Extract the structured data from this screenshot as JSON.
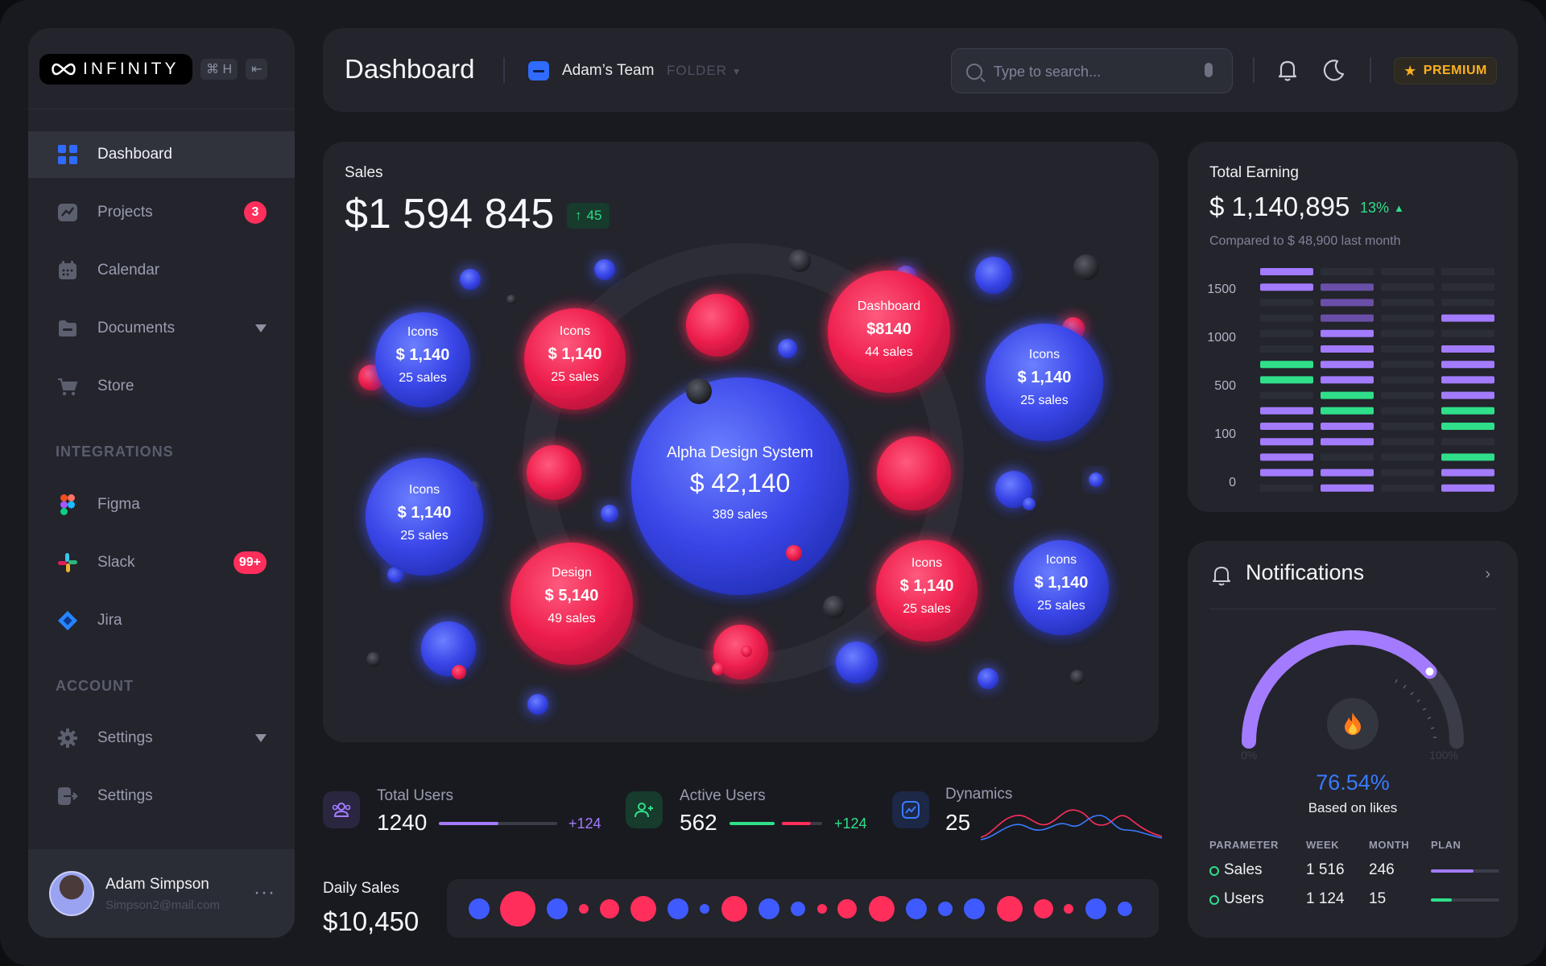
{
  "logo": {
    "text": "INFINITY"
  },
  "shortcut": {
    "key": "⌘ H",
    "collapse": "⇤"
  },
  "sidebar": {
    "items": [
      {
        "label": "Dashboard",
        "active": true
      },
      {
        "label": "Projects",
        "badge": "3"
      },
      {
        "label": "Calendar"
      },
      {
        "label": "Documents",
        "dropdown": true
      },
      {
        "label": "Store"
      }
    ],
    "integrations_label": "INTEGRATIONS",
    "integrations": [
      {
        "label": "Figma"
      },
      {
        "label": "Slack",
        "badge": "99+"
      },
      {
        "label": "Jira"
      }
    ],
    "account_label": "ACCOUNT",
    "account": [
      {
        "label": "Settings",
        "dropdown": true
      },
      {
        "label": "Settings"
      }
    ],
    "profile": {
      "name": "Adam Simpson",
      "email": "Simpson2@mail.com",
      "more": "···"
    }
  },
  "header": {
    "title": "Dashboard",
    "team": "Adam’s Team",
    "folder": "FOLDER",
    "search_placeholder": "Type to search...",
    "premium": "PREMIUM"
  },
  "sales": {
    "label": "Sales",
    "amount": "$1 594 845",
    "badge": "45",
    "bubbles": [
      {
        "title": "Alpha Design System",
        "value": "$ 42,140",
        "sub": "389 sales",
        "color": "blue"
      },
      {
        "title": "Icons",
        "value": "$ 1,140",
        "sub": "25 sales",
        "color": "blue"
      },
      {
        "title": "Icons",
        "value": "$ 1,140",
        "sub": "25 sales",
        "color": "red"
      },
      {
        "title": "Dashboard",
        "value": "$8140",
        "sub": "44 sales",
        "color": "red"
      },
      {
        "title": "Icons",
        "value": "$ 1,140",
        "sub": "25 sales",
        "color": "blue"
      },
      {
        "title": "Icons",
        "value": "$ 1,140",
        "sub": "25 sales",
        "color": "blue"
      },
      {
        "title": "Design",
        "value": "$ 5,140",
        "sub": "49 sales",
        "color": "red"
      },
      {
        "title": "Icons",
        "value": "$ 1,140",
        "sub": "25 sales",
        "color": "red"
      },
      {
        "title": "Icons",
        "value": "$ 1,140",
        "sub": "25 sales",
        "color": "blue"
      }
    ]
  },
  "earning": {
    "label": "Total Earning",
    "amount": "$ 1,140,895",
    "pct": "13%",
    "compare": "Compared to $ 48,900 last month",
    "y_ticks": [
      "1500",
      "1000",
      "500",
      "100",
      "0"
    ]
  },
  "stats": {
    "total_users": {
      "label": "Total Users",
      "value": "1240",
      "delta": "+124"
    },
    "active_users": {
      "label": "Active Users",
      "value": "562",
      "delta": "+124"
    },
    "dynamics": {
      "label": "Dynamics",
      "value": "25"
    }
  },
  "daily_sales": {
    "label": "Daily Sales",
    "value": "$10,450"
  },
  "notifications": {
    "title": "Notifications",
    "gauge_pct": "76.54%",
    "gauge_value": 0.7654,
    "gauge_sub": "Based on likes",
    "gauge_min": "0%",
    "gauge_max": "100%",
    "table": {
      "headers": [
        "PARAMETER",
        "WEEK",
        "MONTH",
        "PLAN"
      ],
      "rows": [
        {
          "name": "Sales",
          "week": "1 516",
          "month": "246",
          "plan": 0.62,
          "color": "#a37bff"
        },
        {
          "name": "Users",
          "week": "1 124",
          "month": "15",
          "plan": 0.3,
          "color": "#2fdf8a"
        }
      ]
    }
  },
  "colors": {
    "blue": "#3f5bff",
    "red": "#ff2e5b",
    "green": "#2fdf8a",
    "purple": "#a37bff",
    "gold": "#ffb020"
  }
}
